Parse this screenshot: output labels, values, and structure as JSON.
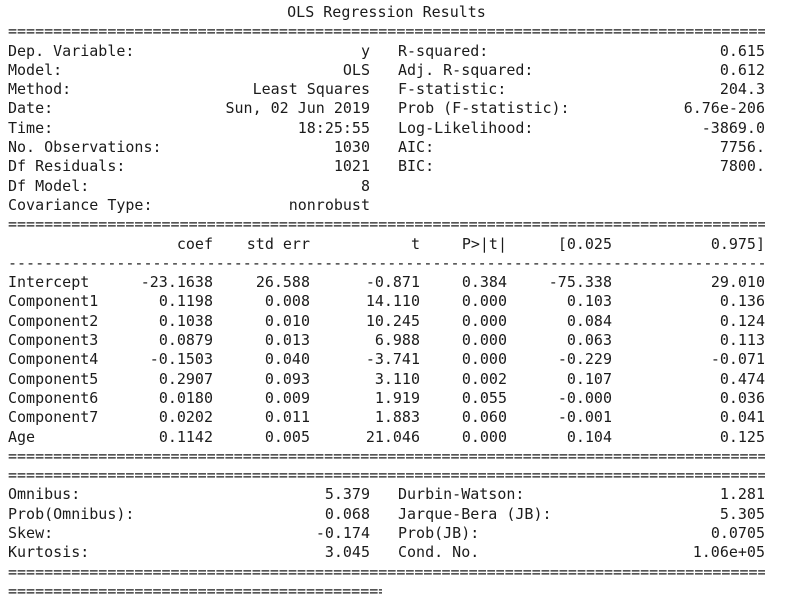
{
  "title": "OLS Regression Results",
  "rules": {
    "eq": "=",
    "dash": "-"
  },
  "summary_left": [
    {
      "label": "Dep. Variable:",
      "value": "y"
    },
    {
      "label": "Model:",
      "value": "OLS"
    },
    {
      "label": "Method:",
      "value": "Least Squares"
    },
    {
      "label": "Date:",
      "value": "Sun, 02 Jun 2019"
    },
    {
      "label": "Time:",
      "value": "18:25:55"
    },
    {
      "label": "No. Observations:",
      "value": "1030"
    },
    {
      "label": "Df Residuals:",
      "value": "1021"
    },
    {
      "label": "Df Model:",
      "value": "8"
    },
    {
      "label": "Covariance Type:",
      "value": "nonrobust"
    }
  ],
  "summary_right": [
    {
      "label": "R-squared:",
      "value": "0.615"
    },
    {
      "label": "Adj. R-squared:",
      "value": "0.612"
    },
    {
      "label": "F-statistic:",
      "value": "204.3"
    },
    {
      "label": "Prob (F-statistic):",
      "value": "6.76e-206"
    },
    {
      "label": "Log-Likelihood:",
      "value": "-3869.0"
    },
    {
      "label": "AIC:",
      "value": "7756."
    },
    {
      "label": "BIC:",
      "value": "7800."
    }
  ],
  "coef_table": {
    "headers": {
      "coef": "coef",
      "std_err": "std err",
      "t": "t",
      "p": "P>|t|",
      "ci_low": "[0.025",
      "ci_high": "0.975]"
    },
    "rows": [
      {
        "name": "Intercept",
        "coef": "-23.1638",
        "std_err": "26.588",
        "t": "-0.871",
        "p": "0.384",
        "ci_low": "-75.338",
        "ci_high": "29.010"
      },
      {
        "name": "Component1",
        "coef": "0.1198",
        "std_err": "0.008",
        "t": "14.110",
        "p": "0.000",
        "ci_low": "0.103",
        "ci_high": "0.136"
      },
      {
        "name": "Component2",
        "coef": "0.1038",
        "std_err": "0.010",
        "t": "10.245",
        "p": "0.000",
        "ci_low": "0.084",
        "ci_high": "0.124"
      },
      {
        "name": "Component3",
        "coef": "0.0879",
        "std_err": "0.013",
        "t": "6.988",
        "p": "0.000",
        "ci_low": "0.063",
        "ci_high": "0.113"
      },
      {
        "name": "Component4",
        "coef": "-0.1503",
        "std_err": "0.040",
        "t": "-3.741",
        "p": "0.000",
        "ci_low": "-0.229",
        "ci_high": "-0.071"
      },
      {
        "name": "Component5",
        "coef": "0.2907",
        "std_err": "0.093",
        "t": "3.110",
        "p": "0.002",
        "ci_low": "0.107",
        "ci_high": "0.474"
      },
      {
        "name": "Component6",
        "coef": "0.0180",
        "std_err": "0.009",
        "t": "1.919",
        "p": "0.055",
        "ci_low": "-0.000",
        "ci_high": "0.036"
      },
      {
        "name": "Component7",
        "coef": "0.0202",
        "std_err": "0.011",
        "t": "1.883",
        "p": "0.060",
        "ci_low": "-0.001",
        "ci_high": "0.041"
      },
      {
        "name": "Age",
        "coef": "0.1142",
        "std_err": "0.005",
        "t": "21.046",
        "p": "0.000",
        "ci_low": "0.104",
        "ci_high": "0.125"
      }
    ]
  },
  "diagnostics_left": [
    {
      "label": "Omnibus:",
      "value": "5.379"
    },
    {
      "label": "Prob(Omnibus):",
      "value": "0.068"
    },
    {
      "label": "Skew:",
      "value": "-0.174"
    },
    {
      "label": "Kurtosis:",
      "value": "3.045"
    }
  ],
  "diagnostics_right": [
    {
      "label": "Durbin-Watson:",
      "value": "1.281"
    },
    {
      "label": "Jarque-Bera (JB):",
      "value": "5.305"
    },
    {
      "label": "Prob(JB):",
      "value": "0.0705"
    },
    {
      "label": "Cond. No.",
      "value": "1.06e+05"
    }
  ]
}
